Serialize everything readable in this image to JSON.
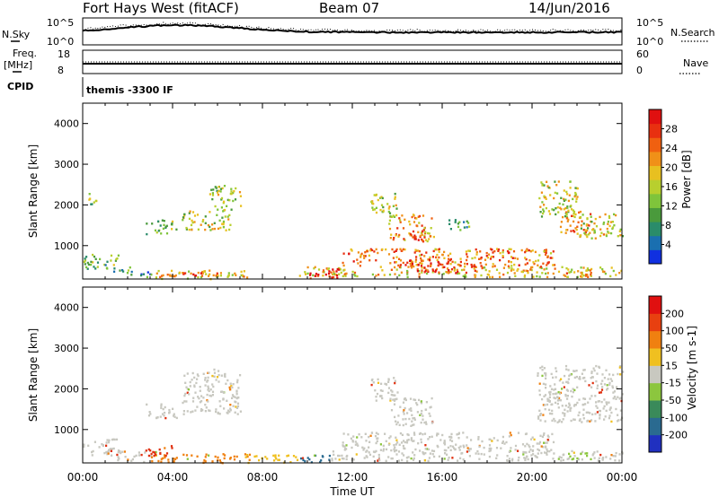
{
  "header": {
    "station": "Fort Hays West (fitACF)",
    "beam": "Beam 07",
    "date": "14/Jun/2016"
  },
  "top_panels": {
    "nsky_label": "N.Sky",
    "nsky_ticks": [
      "10^5",
      "10^0"
    ],
    "nsearch_label": "N.Search",
    "nsearch_ticks": [
      "10^5",
      "10^0"
    ],
    "freq_label": "Freq.",
    "freq_unit": "[MHz]",
    "freq_ticks": [
      "18",
      "8"
    ],
    "nave_label": "Nave",
    "nave_ticks": [
      "60",
      "0"
    ],
    "cpid_label": "CPID",
    "cpid_text": "themis -3300 IF"
  },
  "x_axis": {
    "label": "Time UT",
    "ticks": [
      "00:00",
      "04:00",
      "08:00",
      "12:00",
      "16:00",
      "20:00",
      "00:00"
    ]
  },
  "chart_data": [
    {
      "type": "heatmap",
      "title": "",
      "ylabel": "Slant Range [km]",
      "xlabel": "Time UT",
      "xlim": [
        0,
        24
      ],
      "ylim": [
        180,
        4500
      ],
      "yticks": [
        1000,
        2000,
        3000,
        4000
      ],
      "colorbar": {
        "label": "Power [dB]",
        "ticks": [
          "4",
          "8",
          "12",
          "16",
          "20",
          "24",
          "28"
        ],
        "colors": [
          "#1030e0",
          "#1a6fb0",
          "#2a8c6a",
          "#4a9a3c",
          "#7fc43b",
          "#b8cf2e",
          "#e8c020",
          "#f09018",
          "#f06010",
          "#e83010",
          "#e01010"
        ]
      },
      "regions": [
        {
          "t0": 0.0,
          "t1": 1.6,
          "r0": 380,
          "r1": 800,
          "level": 0.35
        },
        {
          "t0": 1.5,
          "t1": 2.3,
          "r0": 300,
          "r1": 500,
          "level": 0.25
        },
        {
          "t0": 2.3,
          "t1": 3.0,
          "r0": 220,
          "r1": 380,
          "level": 0.15
        },
        {
          "t0": 3.0,
          "t1": 7.4,
          "r0": 200,
          "r1": 420,
          "level": 0.6
        },
        {
          "t0": 3.6,
          "t1": 6.5,
          "r0": 240,
          "r1": 360,
          "level": 0.85
        },
        {
          "t0": 4.4,
          "t1": 6.6,
          "r0": 1400,
          "r1": 1900,
          "level": 0.5
        },
        {
          "t0": 5.6,
          "t1": 7.0,
          "r0": 1900,
          "r1": 2500,
          "level": 0.45
        },
        {
          "t0": 2.8,
          "t1": 4.2,
          "r0": 1300,
          "r1": 1650,
          "level": 0.35
        },
        {
          "t0": 0.2,
          "t1": 0.6,
          "r0": 2000,
          "r1": 2400,
          "level": 0.4
        },
        {
          "t0": 9.6,
          "t1": 24.0,
          "r0": 250,
          "r1": 500,
          "level": 0.6
        },
        {
          "t0": 10.0,
          "t1": 11.7,
          "r0": 220,
          "r1": 450,
          "level": 0.95
        },
        {
          "t0": 11.5,
          "t1": 21.0,
          "r0": 500,
          "r1": 950,
          "level": 0.75
        },
        {
          "t0": 14.0,
          "t1": 17.5,
          "r0": 350,
          "r1": 700,
          "level": 0.9
        },
        {
          "t0": 13.6,
          "t1": 15.6,
          "r0": 1100,
          "r1": 1800,
          "level": 0.7
        },
        {
          "t0": 14.6,
          "t1": 15.4,
          "r0": 1150,
          "r1": 1400,
          "level": 0.95
        },
        {
          "t0": 12.8,
          "t1": 14.0,
          "r0": 1700,
          "r1": 2300,
          "level": 0.45
        },
        {
          "t0": 16.2,
          "t1": 17.2,
          "r0": 1400,
          "r1": 1700,
          "level": 0.3
        },
        {
          "t0": 20.2,
          "t1": 22.0,
          "r0": 1700,
          "r1": 2600,
          "level": 0.5
        },
        {
          "t0": 21.2,
          "t1": 22.6,
          "r0": 1300,
          "r1": 1900,
          "level": 0.7
        },
        {
          "t0": 22.0,
          "t1": 24.0,
          "r0": 1200,
          "r1": 1800,
          "level": 0.55
        },
        {
          "t0": 21.5,
          "t1": 22.6,
          "r0": 250,
          "r1": 450,
          "level": 0.7
        }
      ]
    },
    {
      "type": "heatmap",
      "title": "",
      "ylabel": "Slant Range [km]",
      "xlabel": "Time UT",
      "xlim": [
        0,
        24
      ],
      "ylim": [
        180,
        4500
      ],
      "yticks": [
        1000,
        2000,
        3000,
        4000
      ],
      "colorbar": {
        "label": "Velocity [m s-1]",
        "ticks": [
          "200",
          "100",
          "50",
          "15",
          "-15",
          "-50",
          "-100",
          "-200"
        ],
        "colors": [
          "#2030c0",
          "#2a6a90",
          "#3a8a5a",
          "#8cc63e",
          "#c8c8c0",
          "#f0c020",
          "#f08010",
          "#e84010",
          "#e01010"
        ]
      },
      "regions": [
        {
          "t0": 0.0,
          "t1": 1.6,
          "r0": 380,
          "r1": 800,
          "vel": "gray"
        },
        {
          "t0": 1.5,
          "t1": 3.0,
          "r0": 220,
          "r1": 500,
          "vel": "gray"
        },
        {
          "t0": 3.0,
          "t1": 7.4,
          "r0": 200,
          "r1": 420,
          "vel": "orange"
        },
        {
          "t0": 2.6,
          "t1": 4.2,
          "r0": 380,
          "r1": 620,
          "vel": "red"
        },
        {
          "t0": 4.4,
          "t1": 7.0,
          "r0": 1400,
          "r1": 2500,
          "vel": "gray"
        },
        {
          "t0": 2.8,
          "t1": 4.2,
          "r0": 1300,
          "r1": 1650,
          "vel": "gray"
        },
        {
          "t0": 7.2,
          "t1": 9.6,
          "r0": 200,
          "r1": 400,
          "vel": "yellow"
        },
        {
          "t0": 9.6,
          "t1": 11.0,
          "r0": 200,
          "r1": 420,
          "vel": "blue"
        },
        {
          "t0": 11.0,
          "t1": 24.0,
          "r0": 250,
          "r1": 500,
          "vel": "gray"
        },
        {
          "t0": 11.5,
          "t1": 21.0,
          "r0": 500,
          "r1": 950,
          "vel": "gray"
        },
        {
          "t0": 13.6,
          "t1": 15.6,
          "r0": 1100,
          "r1": 1800,
          "vel": "gray"
        },
        {
          "t0": 12.8,
          "t1": 14.0,
          "r0": 1700,
          "r1": 2300,
          "vel": "gray"
        },
        {
          "t0": 20.2,
          "t1": 24.0,
          "r0": 1200,
          "r1": 2600,
          "vel": "gray"
        },
        {
          "t0": 21.5,
          "t1": 22.6,
          "r0": 250,
          "r1": 450,
          "vel": "green"
        }
      ]
    }
  ]
}
